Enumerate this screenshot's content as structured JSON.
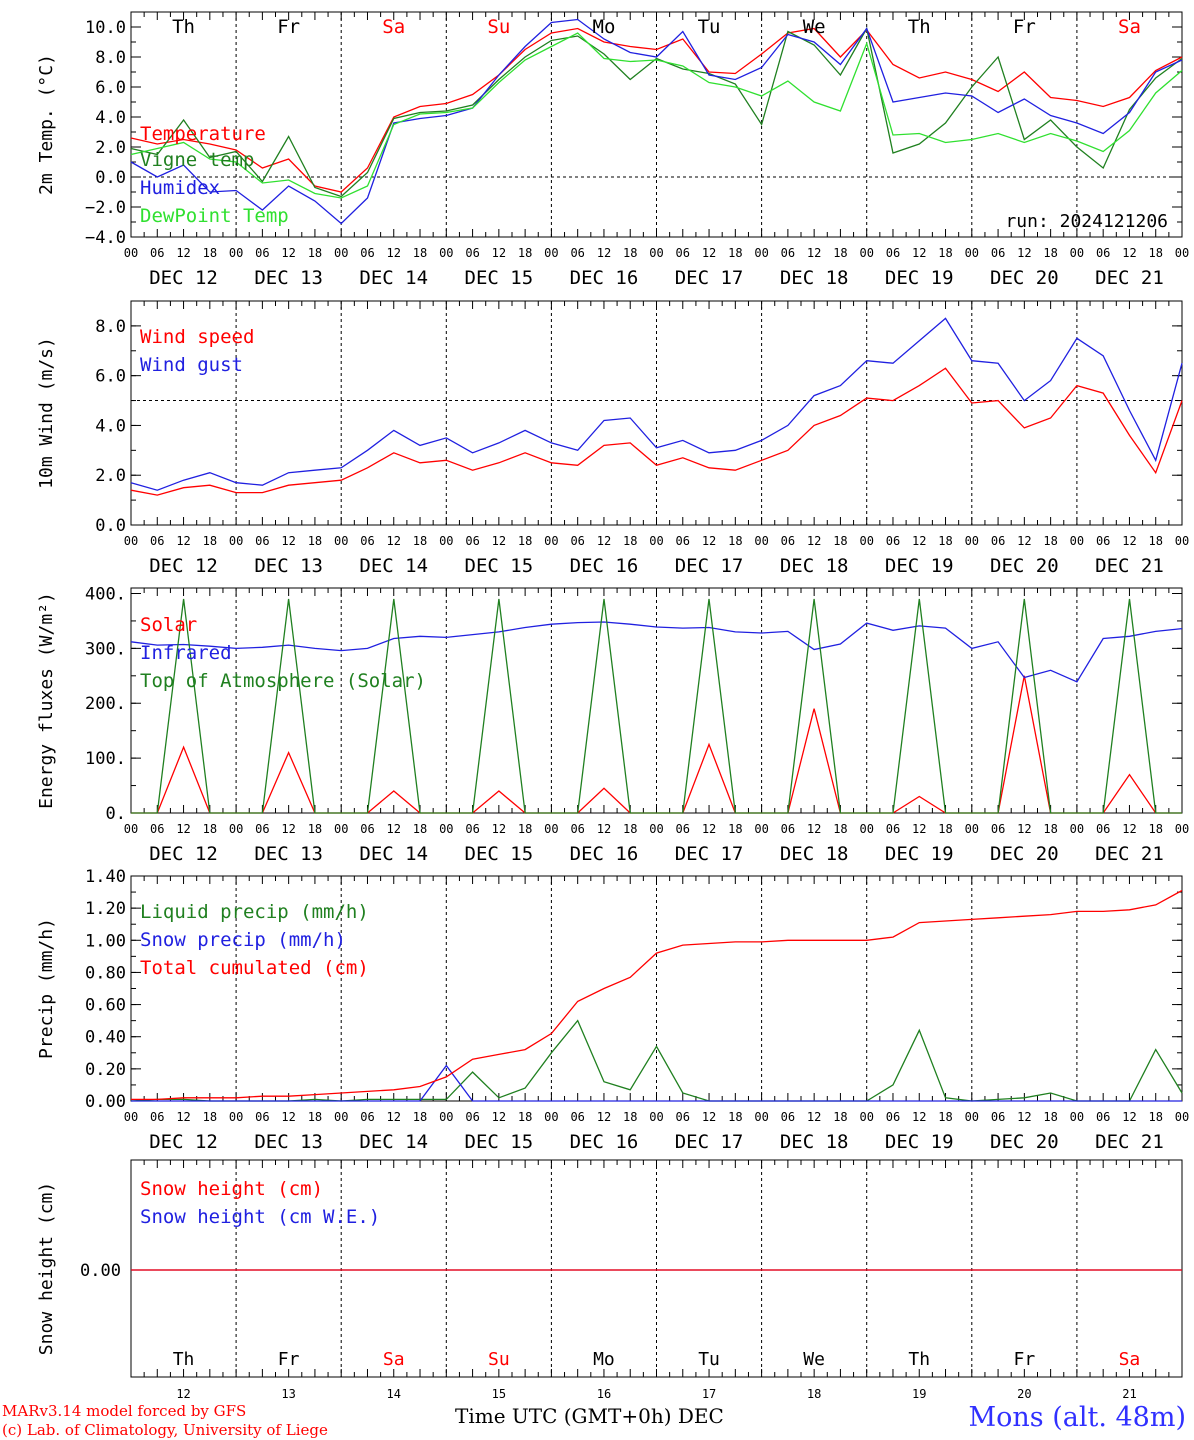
{
  "station": "Mons (alt. 48m)",
  "credits": [
    "MARv3.14 model forced by GFS",
    "(c) Lab. of Climatology, University of Liege"
  ],
  "x_axis_title": "Time UTC (GMT+0h)",
  "month_label": "DEC",
  "run_label": "run: 2024121206",
  "days": [
    {
      "abbr": "Th",
      "date": "12",
      "weekend": false
    },
    {
      "abbr": "Fr",
      "date": "13",
      "weekend": false
    },
    {
      "abbr": "Sa",
      "date": "14",
      "weekend": true
    },
    {
      "abbr": "Su",
      "date": "15",
      "weekend": true
    },
    {
      "abbr": "Mo",
      "date": "16",
      "weekend": false
    },
    {
      "abbr": "Tu",
      "date": "17",
      "weekend": false
    },
    {
      "abbr": "We",
      "date": "18",
      "weekend": false
    },
    {
      "abbr": "Th",
      "date": "19",
      "weekend": false
    },
    {
      "abbr": "Fr",
      "date": "20",
      "weekend": false
    },
    {
      "abbr": "Sa",
      "date": "21",
      "weekend": true
    }
  ],
  "hour_ticks": [
    "00",
    "06",
    "12",
    "18"
  ],
  "colors": {
    "red": "#ff0000",
    "green": "#208020",
    "blue": "#2020e0",
    "lightgreen": "#30e030",
    "weekend": "#ff0000",
    "station": "#3030ff"
  },
  "chart_data": [
    {
      "type": "line",
      "ylabel": "2m Temp. (°C)",
      "ylim": [
        -4,
        11
      ],
      "yticks": [
        -4,
        -2,
        0,
        2,
        4,
        6,
        8,
        10
      ],
      "ytick_labels": [
        "−4.0",
        "−2.0",
        "0.0",
        "2.0",
        "4.0",
        "6.0",
        "8.0",
        "10.0"
      ],
      "reference_line": 0,
      "x": [
        0,
        6,
        12,
        18,
        24,
        30,
        36,
        42,
        48,
        54,
        60,
        66,
        72,
        78,
        84,
        90,
        96,
        102,
        108,
        114,
        120,
        126,
        132,
        138,
        144,
        150,
        156,
        162,
        168,
        174,
        180,
        186,
        192,
        198,
        204,
        210,
        216,
        222,
        228,
        234,
        240
      ],
      "series": [
        {
          "name": "Temperature",
          "color": "red",
          "values": [
            2.6,
            2.2,
            2.5,
            2.2,
            1.8,
            0.6,
            1.2,
            -0.6,
            -1.0,
            0.6,
            4.0,
            4.7,
            4.9,
            5.5,
            6.8,
            8.5,
            9.6,
            9.9,
            9.0,
            8.7,
            8.5,
            9.2,
            7.0,
            6.9,
            8.2,
            9.6,
            9.9,
            8.0,
            9.8,
            7.5,
            6.6,
            7.0,
            6.5,
            5.7,
            7.0,
            5.3,
            5.1,
            4.7,
            5.3,
            7.1,
            8.0
          ]
        },
        {
          "name": "Vigne temp",
          "color": "green",
          "values": [
            1.9,
            1.5,
            3.8,
            1.3,
            1.7,
            -0.3,
            2.7,
            -0.7,
            -1.3,
            0.3,
            3.9,
            4.3,
            4.4,
            4.8,
            6.5,
            8.0,
            9.1,
            9.4,
            8.2,
            6.5,
            7.9,
            7.2,
            6.9,
            6.2,
            3.5,
            9.7,
            8.8,
            6.8,
            9.9,
            1.6,
            2.2,
            3.6,
            6.0,
            8.0,
            2.5,
            3.8,
            2.0,
            0.6,
            4.5,
            6.6,
            7.9
          ]
        },
        {
          "name": "Humidex",
          "color": "blue",
          "values": [
            1.0,
            0.0,
            0.8,
            -1.0,
            -0.9,
            -2.2,
            -0.6,
            -1.6,
            -3.1,
            -1.4,
            3.6,
            3.9,
            4.1,
            4.6,
            6.8,
            8.7,
            10.3,
            10.5,
            9.2,
            8.3,
            8.0,
            9.7,
            6.8,
            6.5,
            7.3,
            9.5,
            9.0,
            7.5,
            9.9,
            5.0,
            5.3,
            5.6,
            5.4,
            4.3,
            5.2,
            4.1,
            3.6,
            2.9,
            4.3,
            7.0,
            7.8
          ]
        },
        {
          "name": "DewPoint Temp",
          "color": "lightgreen",
          "values": [
            1.5,
            1.9,
            2.3,
            1.2,
            1.0,
            -0.4,
            -0.2,
            -1.1,
            -1.4,
            -0.6,
            3.5,
            4.2,
            4.3,
            4.6,
            6.3,
            7.8,
            8.7,
            9.6,
            7.9,
            7.7,
            7.8,
            7.4,
            6.3,
            6.0,
            5.4,
            6.4,
            5.0,
            4.4,
            8.9,
            2.8,
            2.9,
            2.3,
            2.5,
            2.9,
            2.3,
            2.9,
            2.4,
            1.7,
            3.1,
            5.6,
            7.1
          ]
        }
      ]
    },
    {
      "type": "line",
      "ylabel": "10m Wind (m/s)",
      "ylim": [
        0,
        9
      ],
      "yticks": [
        0,
        2,
        4,
        6,
        8
      ],
      "ytick_labels": [
        "0.0",
        "2.0",
        "4.0",
        "6.0",
        "8.0"
      ],
      "reference_line": 5,
      "x": [
        0,
        6,
        12,
        18,
        24,
        30,
        36,
        42,
        48,
        54,
        60,
        66,
        72,
        78,
        84,
        90,
        96,
        102,
        108,
        114,
        120,
        126,
        132,
        138,
        144,
        150,
        156,
        162,
        168,
        174,
        180,
        186,
        192,
        198,
        204,
        210,
        216,
        222,
        228,
        234,
        240
      ],
      "series": [
        {
          "name": "Wind speed",
          "color": "red",
          "values": [
            1.4,
            1.2,
            1.5,
            1.6,
            1.3,
            1.3,
            1.6,
            1.7,
            1.8,
            2.3,
            2.9,
            2.5,
            2.6,
            2.2,
            2.5,
            2.9,
            2.5,
            2.4,
            3.2,
            3.3,
            2.4,
            2.7,
            2.3,
            2.2,
            2.6,
            3.0,
            4.0,
            4.4,
            5.1,
            5.0,
            5.6,
            6.3,
            4.9,
            5.0,
            3.9,
            4.3,
            5.6,
            5.3,
            3.6,
            2.1,
            5.0
          ]
        },
        {
          "name": "Wind gust",
          "color": "blue",
          "values": [
            1.7,
            1.4,
            1.8,
            2.1,
            1.7,
            1.6,
            2.1,
            2.2,
            2.3,
            3.0,
            3.8,
            3.2,
            3.5,
            2.9,
            3.3,
            3.8,
            3.3,
            3.0,
            4.2,
            4.3,
            3.1,
            3.4,
            2.9,
            3.0,
            3.4,
            4.0,
            5.2,
            5.6,
            6.6,
            6.5,
            7.4,
            8.3,
            6.6,
            6.5,
            5.0,
            5.8,
            7.5,
            6.8,
            4.6,
            2.6,
            6.5
          ]
        }
      ]
    },
    {
      "type": "line",
      "ylabel": "Energy fluxes (W/m²)",
      "ylim": [
        0,
        410
      ],
      "yticks": [
        0,
        100,
        200,
        300,
        400
      ],
      "ytick_labels": [
        "0.",
        "100.",
        "200.",
        "300.",
        "400."
      ],
      "x": [
        0,
        6,
        12,
        18,
        24,
        30,
        36,
        42,
        48,
        54,
        60,
        66,
        72,
        78,
        84,
        90,
        96,
        102,
        108,
        114,
        120,
        126,
        132,
        138,
        144,
        150,
        156,
        162,
        168,
        174,
        180,
        186,
        192,
        198,
        204,
        210,
        216,
        222,
        228,
        234,
        240
      ],
      "series": [
        {
          "name": "Solar",
          "color": "red",
          "values": [
            0,
            0,
            120,
            0,
            0,
            0,
            110,
            0,
            0,
            0,
            40,
            0,
            0,
            0,
            40,
            0,
            0,
            0,
            45,
            0,
            0,
            0,
            125,
            0,
            0,
            0,
            190,
            0,
            0,
            0,
            30,
            0,
            0,
            0,
            250,
            0,
            0,
            0,
            70,
            0,
            0
          ]
        },
        {
          "name": "Infrared",
          "color": "blue",
          "values": [
            312,
            306,
            307,
            304,
            300,
            302,
            306,
            300,
            296,
            300,
            318,
            322,
            320,
            325,
            330,
            338,
            344,
            347,
            348,
            344,
            339,
            337,
            338,
            330,
            328,
            331,
            298,
            308,
            346,
            333,
            341,
            337,
            300,
            312,
            247,
            260,
            239,
            318,
            322,
            331,
            336
          ]
        },
        {
          "name": "Top of Atmosphere (Solar)",
          "color": "green",
          "values": [
            0,
            0,
            390,
            0,
            0,
            0,
            390,
            0,
            0,
            0,
            390,
            0,
            0,
            0,
            390,
            0,
            0,
            0,
            390,
            0,
            0,
            0,
            390,
            0,
            0,
            0,
            390,
            0,
            0,
            0,
            390,
            0,
            0,
            0,
            390,
            0,
            0,
            0,
            390,
            0,
            0
          ]
        }
      ]
    },
    {
      "type": "line",
      "ylabel": "Precip (mm/h)",
      "ylim": [
        0,
        1.4
      ],
      "yticks": [
        0,
        0.2,
        0.4,
        0.6,
        0.8,
        1.0,
        1.2,
        1.4
      ],
      "ytick_labels": [
        "0.00",
        "0.20",
        "0.40",
        "0.60",
        "0.80",
        "1.00",
        "1.20",
        "1.40"
      ],
      "x": [
        0,
        6,
        12,
        18,
        24,
        30,
        36,
        42,
        48,
        54,
        60,
        66,
        72,
        78,
        84,
        90,
        96,
        102,
        108,
        114,
        120,
        126,
        132,
        138,
        144,
        150,
        156,
        162,
        168,
        174,
        180,
        186,
        192,
        198,
        204,
        210,
        216,
        222,
        228,
        234,
        240
      ],
      "series": [
        {
          "name": "Liquid precip (mm/h)",
          "color": "green",
          "values": [
            0,
            0.01,
            0.01,
            0,
            0,
            0,
            0,
            0.01,
            0,
            0.01,
            0.01,
            0.01,
            0.01,
            0.18,
            0.02,
            0.08,
            0.3,
            0.5,
            0.12,
            0.07,
            0.34,
            0.05,
            0,
            0,
            0,
            0,
            0,
            0,
            0,
            0.1,
            0.44,
            0.02,
            0,
            0.01,
            0.02,
            0.05,
            0,
            0,
            0,
            0.32,
            0.05
          ]
        },
        {
          "name": "Snow precip (mm/h)",
          "color": "blue",
          "values": [
            0,
            0,
            0,
            0,
            0,
            0,
            0,
            0,
            0,
            0,
            0,
            0,
            0.22,
            0,
            0,
            0,
            0,
            0,
            0,
            0,
            0,
            0,
            0,
            0,
            0,
            0,
            0,
            0,
            0,
            0,
            0,
            0,
            0,
            0,
            0,
            0,
            0,
            0,
            0,
            0,
            0
          ]
        },
        {
          "name": "Total cumulated (cm)",
          "color": "red",
          "values": [
            0.01,
            0.01,
            0.02,
            0.02,
            0.02,
            0.03,
            0.03,
            0.04,
            0.05,
            0.06,
            0.07,
            0.09,
            0.15,
            0.26,
            0.29,
            0.32,
            0.42,
            0.62,
            0.7,
            0.77,
            0.92,
            0.97,
            0.98,
            0.99,
            0.99,
            1.0,
            1.0,
            1.0,
            1.0,
            1.02,
            1.11,
            1.12,
            1.13,
            1.14,
            1.15,
            1.16,
            1.18,
            1.18,
            1.19,
            1.22,
            1.31
          ]
        }
      ]
    },
    {
      "type": "line",
      "ylabel": "Snow height (cm)",
      "ytick_labels": [
        "0.00"
      ],
      "x": [
        0,
        240
      ],
      "series": [
        {
          "name": "Snow height (cm)",
          "color": "red",
          "values": [
            0,
            0
          ]
        },
        {
          "name": "Snow height (cm W.E.)",
          "color": "blue",
          "values": [
            0,
            0
          ]
        }
      ]
    }
  ]
}
